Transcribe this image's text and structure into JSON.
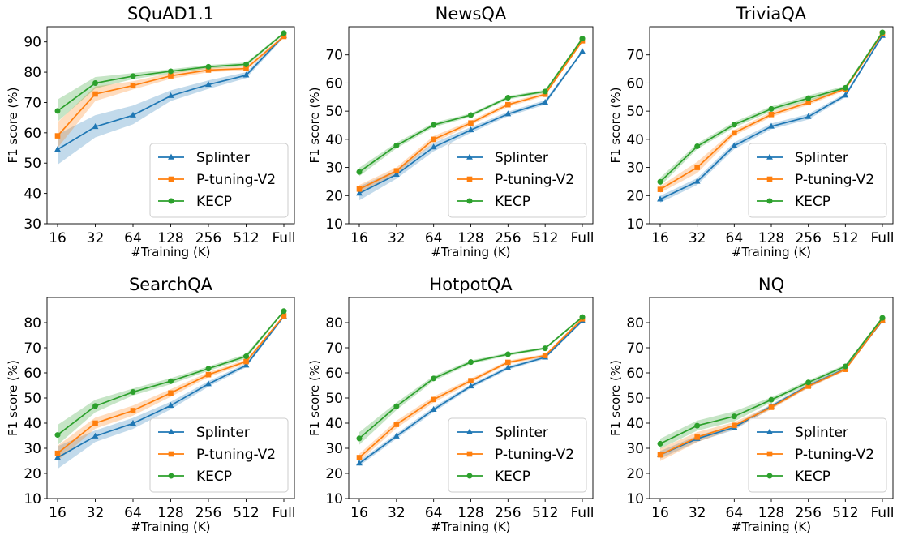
{
  "figure": {
    "colors": {
      "Splinter": "#1f77b4",
      "P-tuning-V2": "#ff7f0e",
      "KECP": "#2ca02c"
    },
    "markers": {
      "Splinter": "triangle",
      "P-tuning-V2": "square",
      "KECP": "circle"
    }
  },
  "chart_data": [
    {
      "type": "line",
      "title": "SQuAD1.1",
      "xlabel": "#Training (K)",
      "ylabel": "F1 score (%)",
      "categories": [
        "16",
        "32",
        "64",
        "128",
        "256",
        "512",
        "Full"
      ],
      "ylim": [
        30,
        95
      ],
      "yticks": [
        30,
        40,
        50,
        60,
        70,
        80,
        90
      ],
      "legend": "bottom-right",
      "grid": false,
      "series": [
        {
          "name": "Splinter",
          "values": [
            54.5,
            62.0,
            65.8,
            72.2,
            75.9,
            79.0,
            92.0
          ],
          "lower": [
            49.5,
            58.5,
            62.8,
            70.5,
            74.5,
            78.0,
            91.5
          ],
          "upper": [
            59.5,
            65.8,
            69.0,
            74.0,
            77.3,
            80.0,
            92.5
          ]
        },
        {
          "name": "P-tuning-V2",
          "values": [
            59.0,
            72.8,
            75.6,
            78.8,
            80.7,
            81.2,
            91.8
          ],
          "lower": [
            55.0,
            70.5,
            74.3,
            77.8,
            80.0,
            80.6,
            91.3
          ],
          "upper": [
            63.5,
            75.3,
            77.0,
            79.8,
            81.5,
            81.9,
            92.3
          ]
        },
        {
          "name": "KECP",
          "values": [
            67.2,
            76.4,
            78.7,
            80.3,
            81.8,
            82.6,
            92.9
          ],
          "lower": [
            63.7,
            74.6,
            77.7,
            79.6,
            81.2,
            82.0,
            92.5
          ],
          "upper": [
            71.0,
            78.4,
            79.7,
            81.0,
            82.4,
            83.2,
            93.3
          ]
        }
      ]
    },
    {
      "type": "line",
      "title": "NewsQA",
      "xlabel": "#Training (K)",
      "ylabel": "F1 score (%)",
      "categories": [
        "16",
        "32",
        "64",
        "128",
        "256",
        "512",
        "Full"
      ],
      "ylim": [
        10,
        80
      ],
      "yticks": [
        10,
        20,
        30,
        40,
        50,
        60,
        70
      ],
      "legend": "bottom-right",
      "grid": false,
      "series": [
        {
          "name": "Splinter",
          "values": [
            20.8,
            27.5,
            37.2,
            43.3,
            49.0,
            53.1,
            71.2
          ],
          "lower": [
            18.3,
            26.0,
            35.7,
            42.3,
            48.2,
            52.3,
            70.7
          ],
          "upper": [
            23.3,
            29.0,
            38.7,
            44.3,
            49.8,
            53.9,
            71.7
          ]
        },
        {
          "name": "P-tuning-V2",
          "values": [
            22.3,
            28.8,
            40.0,
            45.8,
            52.3,
            56.0,
            75.0
          ],
          "lower": [
            20.8,
            27.6,
            38.8,
            45.0,
            51.5,
            55.4,
            74.5
          ],
          "upper": [
            23.8,
            30.0,
            41.2,
            46.6,
            53.1,
            56.6,
            75.5
          ]
        },
        {
          "name": "KECP",
          "values": [
            28.4,
            37.8,
            45.1,
            48.6,
            54.8,
            57.0,
            75.8
          ],
          "lower": [
            26.9,
            36.8,
            44.3,
            48.0,
            54.2,
            56.4,
            75.3
          ],
          "upper": [
            29.9,
            38.8,
            45.9,
            49.2,
            55.4,
            57.6,
            76.3
          ]
        }
      ]
    },
    {
      "type": "line",
      "title": "TriviaQA",
      "xlabel": "#Training (K)",
      "ylabel": "F1 score (%)",
      "categories": [
        "16",
        "32",
        "64",
        "128",
        "256",
        "512",
        "Full"
      ],
      "ylim": [
        10,
        80
      ],
      "yticks": [
        10,
        20,
        30,
        40,
        50,
        60,
        70
      ],
      "legend": "bottom-right",
      "grid": false,
      "series": [
        {
          "name": "Splinter",
          "values": [
            18.7,
            25.0,
            37.7,
            44.6,
            48.0,
            55.6,
            76.8
          ],
          "lower": [
            17.5,
            23.8,
            36.5,
            43.6,
            47.0,
            54.9,
            76.3
          ],
          "upper": [
            19.9,
            26.2,
            38.9,
            45.6,
            49.0,
            56.3,
            77.3
          ]
        },
        {
          "name": "P-tuning-V2",
          "values": [
            22.2,
            30.0,
            42.3,
            48.8,
            53.0,
            57.9,
            77.6
          ],
          "lower": [
            21.0,
            28.0,
            41.3,
            47.9,
            52.2,
            57.3,
            77.1
          ],
          "upper": [
            23.4,
            32.0,
            43.3,
            49.7,
            53.8,
            58.5,
            78.1
          ]
        },
        {
          "name": "KECP",
          "values": [
            24.9,
            37.5,
            45.2,
            50.8,
            54.6,
            58.3,
            78.0
          ],
          "lower": [
            23.4,
            36.5,
            44.2,
            49.9,
            53.6,
            57.6,
            77.5
          ],
          "upper": [
            26.4,
            38.5,
            46.2,
            51.7,
            55.6,
            59.0,
            78.5
          ]
        }
      ]
    },
    {
      "type": "line",
      "title": "SearchQA",
      "xlabel": "#Training (K)",
      "ylabel": "F1 score (%)",
      "categories": [
        "16",
        "32",
        "64",
        "128",
        "256",
        "512",
        "Full"
      ],
      "ylim": [
        10,
        90
      ],
      "yticks": [
        10,
        20,
        30,
        40,
        50,
        60,
        70,
        80
      ],
      "legend": "bottom-right",
      "grid": false,
      "series": [
        {
          "name": "Splinter",
          "values": [
            26.3,
            34.8,
            39.9,
            47.0,
            55.6,
            63.0,
            82.5
          ],
          "lower": [
            21.8,
            32.5,
            37.7,
            45.5,
            54.5,
            62.2,
            82.0
          ],
          "upper": [
            30.8,
            37.1,
            42.1,
            48.5,
            56.7,
            63.8,
            83.0
          ]
        },
        {
          "name": "P-tuning-V2",
          "values": [
            28.0,
            40.0,
            45.0,
            52.0,
            59.3,
            64.5,
            82.7
          ],
          "lower": [
            25.0,
            37.8,
            43.0,
            50.5,
            58.3,
            63.7,
            82.2
          ],
          "upper": [
            31.0,
            42.2,
            47.0,
            53.5,
            60.3,
            65.3,
            83.2
          ]
        },
        {
          "name": "KECP",
          "values": [
            35.3,
            46.8,
            52.4,
            56.7,
            61.7,
            66.6,
            84.6
          ],
          "lower": [
            31.3,
            44.3,
            51.0,
            55.5,
            60.8,
            65.7,
            84.1
          ],
          "upper": [
            39.3,
            49.3,
            53.8,
            57.9,
            62.6,
            67.5,
            85.1
          ]
        }
      ]
    },
    {
      "type": "line",
      "title": "HotpotQA",
      "xlabel": "#Training (K)",
      "ylabel": "F1 score (%)",
      "categories": [
        "16",
        "32",
        "64",
        "128",
        "256",
        "512",
        "Full"
      ],
      "ylim": [
        10,
        90
      ],
      "yticks": [
        10,
        20,
        30,
        40,
        50,
        60,
        70,
        80
      ],
      "legend": "bottom-right",
      "grid": false,
      "series": [
        {
          "name": "Splinter",
          "values": [
            24.0,
            34.8,
            45.4,
            54.7,
            62.0,
            66.2,
            80.7
          ],
          "lower": [
            23.0,
            33.8,
            44.4,
            53.9,
            61.3,
            65.6,
            80.2
          ],
          "upper": [
            25.0,
            35.8,
            46.4,
            55.5,
            62.7,
            66.8,
            81.2
          ]
        },
        {
          "name": "P-tuning-V2",
          "values": [
            26.3,
            39.5,
            49.4,
            56.9,
            64.2,
            66.9,
            81.5
          ],
          "lower": [
            24.8,
            38.0,
            48.2,
            56.0,
            63.5,
            66.3,
            81.0
          ],
          "upper": [
            27.8,
            41.0,
            50.6,
            57.8,
            64.9,
            67.5,
            82.0
          ]
        },
        {
          "name": "KECP",
          "values": [
            33.9,
            46.7,
            57.8,
            64.3,
            67.4,
            69.8,
            82.2
          ],
          "lower": [
            31.4,
            45.2,
            56.8,
            63.6,
            66.8,
            69.3,
            81.7
          ],
          "upper": [
            36.4,
            48.2,
            58.8,
            65.0,
            68.0,
            70.3,
            82.7
          ]
        }
      ]
    },
    {
      "type": "line",
      "title": "NQ",
      "xlabel": "#Training (K)",
      "ylabel": "F1 score (%)",
      "categories": [
        "16",
        "32",
        "64",
        "128",
        "256",
        "512",
        "Full"
      ],
      "ylim": [
        10,
        90
      ],
      "yticks": [
        10,
        20,
        30,
        40,
        50,
        60,
        70,
        80
      ],
      "legend": "bottom-right",
      "grid": false,
      "series": [
        {
          "name": "Splinter",
          "values": [
            27.4,
            33.8,
            38.3,
            46.7,
            54.9,
            61.6,
            80.8
          ],
          "lower": [
            25.9,
            32.6,
            37.3,
            45.9,
            54.2,
            61.0,
            80.3
          ],
          "upper": [
            28.9,
            35.0,
            39.3,
            47.5,
            55.6,
            62.2,
            81.3
          ]
        },
        {
          "name": "P-tuning-V2",
          "values": [
            27.4,
            34.4,
            39.1,
            46.3,
            54.7,
            61.4,
            81.0
          ],
          "lower": [
            24.9,
            32.4,
            37.8,
            45.5,
            54.0,
            60.8,
            80.5
          ],
          "upper": [
            29.9,
            36.4,
            40.4,
            47.1,
            55.4,
            62.0,
            81.5
          ]
        },
        {
          "name": "KECP",
          "values": [
            31.8,
            39.0,
            42.7,
            49.3,
            56.2,
            62.6,
            81.9
          ],
          "lower": [
            29.8,
            37.0,
            40.7,
            48.3,
            55.4,
            61.9,
            81.4
          ],
          "upper": [
            33.8,
            41.0,
            44.7,
            50.3,
            57.0,
            63.3,
            82.4
          ]
        }
      ]
    }
  ]
}
